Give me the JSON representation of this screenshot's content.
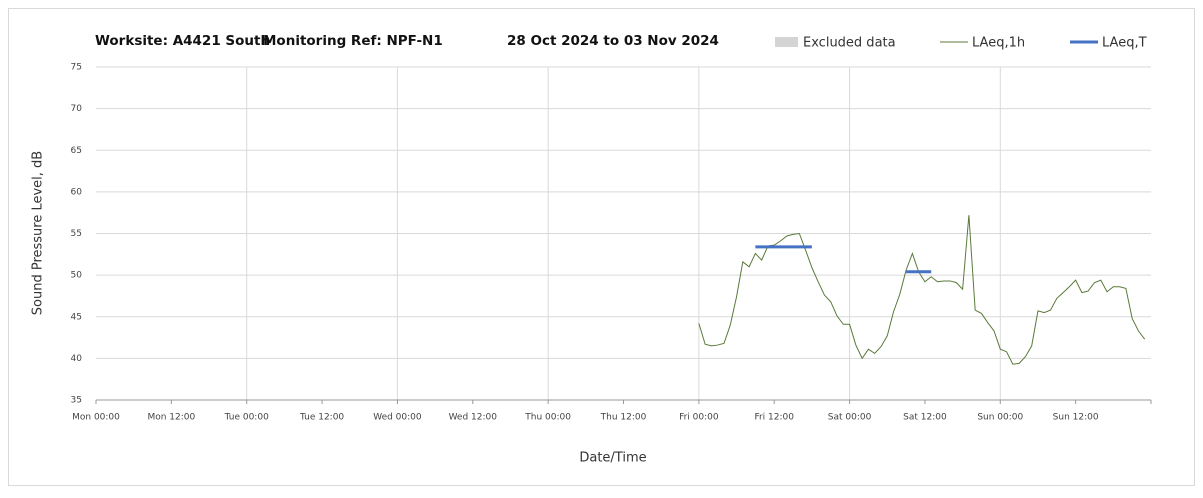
{
  "chart_data": {
    "type": "line",
    "title": [
      "Worksite: A4421 South",
      "Monitoring Ref: NPF-N1",
      "28 Oct 2024 to 03 Nov 2024"
    ],
    "x_label": "Date/Time",
    "y_label": "Sound Pressure Level, dB",
    "xlim": [
      0,
      168
    ],
    "xticks": [
      {
        "value": 0,
        "label": "Mon 00:00"
      },
      {
        "value": 12,
        "label": "Mon 12:00"
      },
      {
        "value": 24,
        "label": "Tue 00:00"
      },
      {
        "value": 36,
        "label": "Tue 12:00"
      },
      {
        "value": 48,
        "label": "Wed 00:00"
      },
      {
        "value": 60,
        "label": "Wed 12:00"
      },
      {
        "value": 72,
        "label": "Thu 00:00"
      },
      {
        "value": 84,
        "label": "Thu 12:00"
      },
      {
        "value": 96,
        "label": "Fri 00:00"
      },
      {
        "value": 108,
        "label": "Fri 12:00"
      },
      {
        "value": 120,
        "label": "Sat 00:00"
      },
      {
        "value": 132,
        "label": "Sat 12:00"
      },
      {
        "value": 144,
        "label": "Sun 00:00"
      },
      {
        "value": 156,
        "label": "Sun 12:00"
      }
    ],
    "ylim": [
      35,
      75
    ],
    "yticks": [
      35,
      40,
      45,
      50,
      55,
      60,
      65,
      70,
      75
    ],
    "grid": true,
    "excluded": {
      "name": "Excluded data",
      "color": "#d4d4d4"
    },
    "series": [
      {
        "name": "LAeq,1h",
        "color": "#5a7a3a",
        "width": 1,
        "x": [
          96,
          97,
          98,
          99,
          100,
          101,
          102,
          103,
          104,
          105,
          106,
          107,
          108,
          109,
          110,
          111,
          112,
          113,
          114,
          115,
          116,
          117,
          118,
          119,
          120,
          121,
          122,
          123,
          124,
          125,
          126,
          127,
          128,
          129,
          130,
          131,
          132,
          133,
          134,
          135,
          136,
          137,
          138,
          139,
          140,
          141,
          142,
          143,
          144,
          145,
          146,
          147,
          148,
          149,
          150,
          151,
          152,
          153,
          154,
          155,
          156,
          157,
          158,
          159,
          160,
          161,
          162,
          163,
          164,
          165,
          166,
          167
        ],
        "values": [
          44.2,
          41.7,
          41.5,
          41.6,
          41.8,
          44.0,
          47.4,
          51.6,
          51.0,
          52.6,
          51.8,
          53.5,
          53.6,
          54.1,
          54.7,
          54.9,
          55.0,
          53.0,
          50.9,
          49.2,
          47.6,
          46.8,
          45.1,
          44.1,
          44.1,
          41.6,
          40.0,
          41.1,
          40.6,
          41.4,
          42.7,
          45.6,
          47.7,
          50.6,
          52.6,
          50.4,
          49.2,
          49.8,
          49.2,
          49.3,
          49.3,
          49.1,
          48.3,
          57.2,
          45.8,
          45.4,
          44.3,
          43.3,
          41.1,
          40.8,
          39.3,
          39.4,
          40.2,
          41.5,
          45.7,
          45.5,
          45.8,
          47.2,
          47.9,
          48.6,
          49.4,
          47.9,
          48.1,
          49.1,
          49.4,
          48.0,
          48.6,
          48.6,
          48.4,
          44.8,
          43.3,
          42.3
        ]
      },
      {
        "name": "LAeq,T",
        "color": "#4472c4",
        "width": 3,
        "x": [
          105,
          114,
          null,
          129,
          133
        ],
        "values": [
          53.4,
          53.4,
          null,
          50.4,
          50.4
        ]
      }
    ]
  }
}
